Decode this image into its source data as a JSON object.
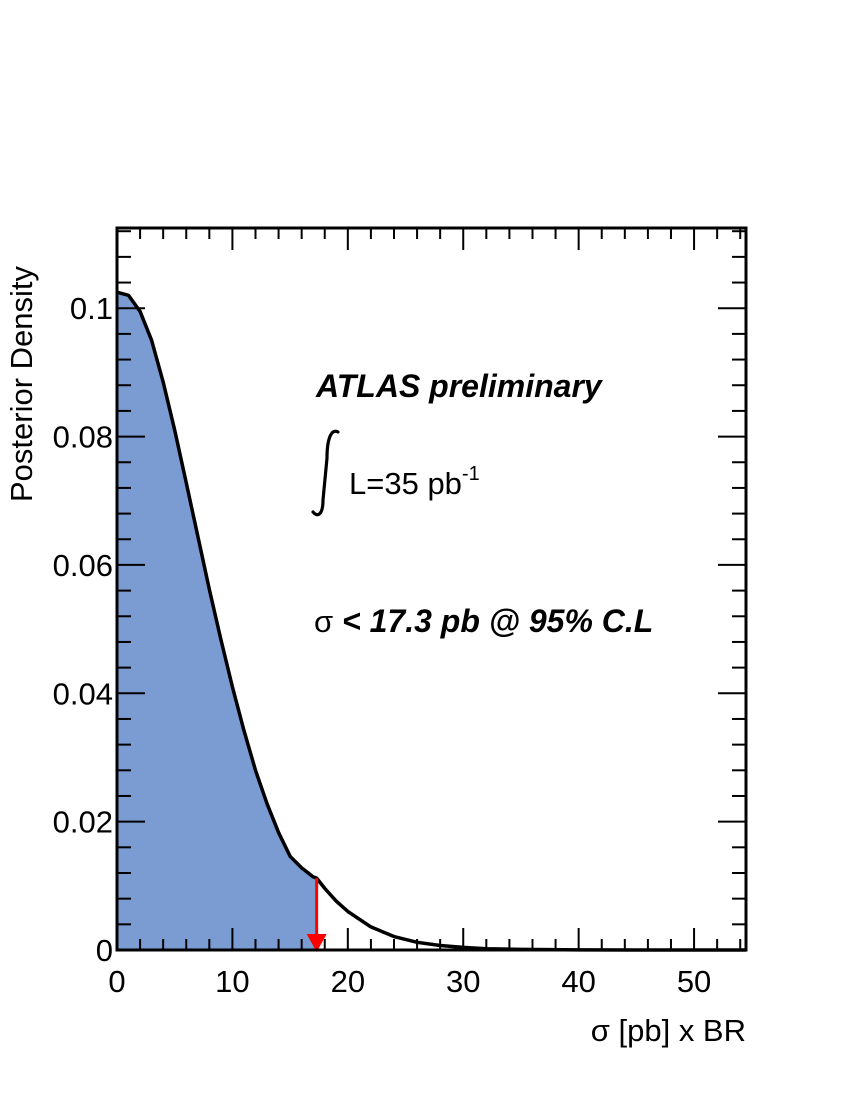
{
  "chart_data": {
    "type": "area",
    "title": "",
    "xlabel": "σ [pb] x BR",
    "ylabel": "Posterior Density",
    "xlim": [
      0,
      54.5
    ],
    "ylim": [
      0,
      0.1125
    ],
    "x_ticks": [
      0,
      10,
      20,
      30,
      40,
      50
    ],
    "x_tick_labels": [
      "0",
      "10",
      "20",
      "30",
      "40",
      "50"
    ],
    "y_ticks": [
      0,
      0.02,
      0.04,
      0.06,
      0.08,
      0.1
    ],
    "y_tick_labels": [
      "0",
      "0.02",
      "0.04",
      "0.06",
      "0.08",
      "0.1"
    ],
    "grid": false,
    "curve": {
      "x": [
        0,
        1,
        2,
        3,
        4,
        5,
        6,
        7,
        8,
        9,
        10,
        11,
        12,
        13,
        14,
        15,
        16,
        17,
        17.3,
        18,
        19,
        20,
        22,
        24,
        26,
        28,
        30,
        32,
        35,
        40,
        45,
        50,
        54.5
      ],
      "y": [
        0.1025,
        0.102,
        0.0995,
        0.095,
        0.0885,
        0.081,
        0.0728,
        0.0645,
        0.0562,
        0.0484,
        0.041,
        0.0342,
        0.028,
        0.0228,
        0.0183,
        0.0146,
        0.0128,
        0.0114,
        0.0112,
        0.0096,
        0.0076,
        0.006,
        0.0036,
        0.0021,
        0.0012,
        0.0007,
        0.0004,
        0.0002,
        0.0001,
        2e-05,
        4e-06,
        1e-06,
        0.0
      ]
    },
    "shaded_upper_x": 17.3,
    "limit_x": 17.3,
    "annotations": {
      "experiment": "ATLAS preliminary",
      "lumi_label": "L=35 pb",
      "lumi_exponent": "-1",
      "limit_sigma": "σ",
      "limit_text": " < 17.3 pb @ 95% C.L"
    },
    "colors": {
      "fill": "#7b9bd3",
      "curve": "#000000",
      "arrow": "#ff0000",
      "frame": "#000000"
    }
  }
}
